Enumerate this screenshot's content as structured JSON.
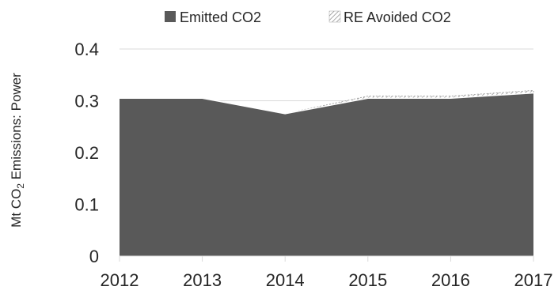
{
  "chart_data": {
    "type": "area",
    "stacked": true,
    "ylabel": "Mt CO₂ Emissions: Power",
    "ylim": [
      0,
      0.4
    ],
    "y_ticks": [
      "0",
      "0.1",
      "0.2",
      "0.3",
      "0.4"
    ],
    "categories": [
      "2012",
      "2013",
      "2014",
      "2015",
      "2016",
      "2017"
    ],
    "legend_position": "top",
    "grid": true,
    "series": [
      {
        "name": "Emitted CO2",
        "values": [
          0.305,
          0.305,
          0.275,
          0.305,
          0.305,
          0.315
        ],
        "color": "#595959",
        "fill": "solid"
      },
      {
        "name": "RE Avoided CO2",
        "values": [
          0.0,
          0.0,
          0.0,
          0.004,
          0.004,
          0.005
        ],
        "color": "#a6a6a6",
        "fill": "hatched"
      }
    ]
  }
}
